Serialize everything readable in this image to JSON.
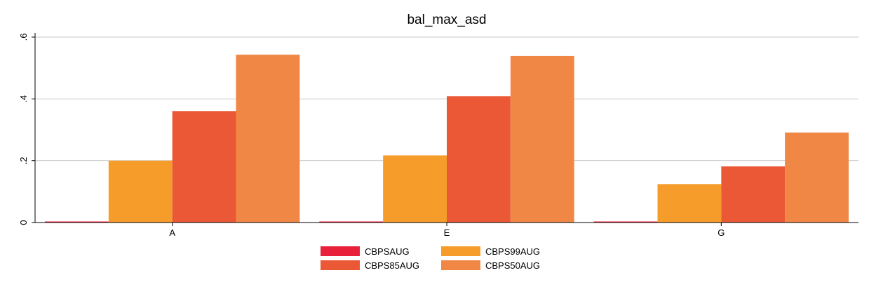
{
  "chart_data": {
    "type": "bar",
    "title": "bal_max_asd",
    "xlabel": "",
    "ylabel": "",
    "categories": [
      "A",
      "E",
      "G"
    ],
    "series": [
      {
        "name": "CBPSAUG",
        "color": "#e8203a",
        "values": [
          0.002,
          0.002,
          0.002
        ]
      },
      {
        "name": "CBPS99AUG",
        "color": "#f59c2a",
        "values": [
          0.2,
          0.217,
          0.124
        ]
      },
      {
        "name": "CBPS85AUG",
        "color": "#ea5836",
        "values": [
          0.36,
          0.409,
          0.182
        ]
      },
      {
        "name": "CBPS50AUG",
        "color": "#f08745",
        "values": [
          0.543,
          0.539,
          0.291
        ]
      }
    ],
    "ylim": [
      0,
      0.6
    ],
    "yticks": [
      0,
      0.2,
      0.4,
      0.6
    ],
    "ytick_labels": [
      "0",
      ".2",
      ".4",
      ".6"
    ],
    "grid": true,
    "legend_position": "bottom"
  }
}
